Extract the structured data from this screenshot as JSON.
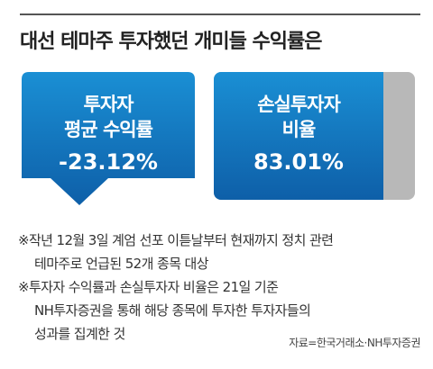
{
  "title": "대선 테마주 투자했던 개미들 수익률은",
  "card_return": {
    "label_line1": "투자자",
    "label_line2": "평균 수익률",
    "value": "-23.12%",
    "value_num": -23.12,
    "color": "#1a8fd4"
  },
  "card_loss": {
    "label_line1": "손실투자자",
    "label_line2": "비율",
    "value": "83.01%",
    "value_num": 83.01,
    "color": "#1a8fd4",
    "remainder_color": "#b8b8b8"
  },
  "notes": {
    "n1_l1": "※작년 12월 3일 계엄 선포 이튿날부터 현재까지 정치 관련",
    "n1_l2": "테마주로 언급된 52개 종목 대상",
    "n2_l1": "※투자자 수익률과 손실투자자 비율은 21일 기준",
    "n2_l2": "NH투자증권을 통해 해당 종목에 투자한 투자자들의",
    "n2_l3": "성과를 집계한 것"
  },
  "source": "자료=한국거래소·NH투자증권"
}
